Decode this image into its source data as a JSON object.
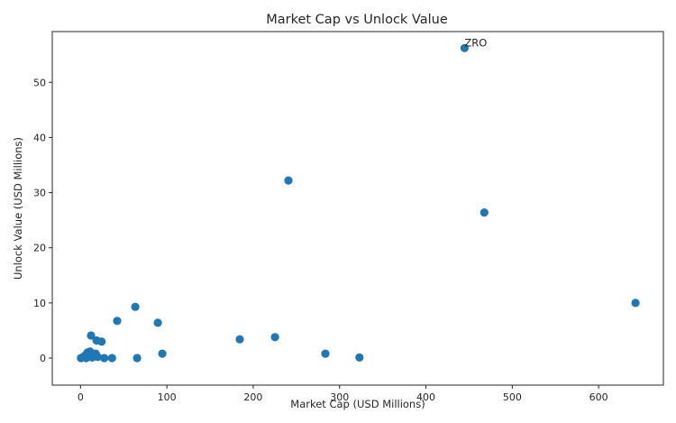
{
  "chart_data": {
    "type": "scatter",
    "title": "Market Cap vs Unlock Value",
    "xlabel": "Market Cap (USD Millions)",
    "ylabel": "Unlock Value (USD Millions)",
    "xlim": [
      -32.7,
      675
    ],
    "ylim": [
      -4.9,
      59.2
    ],
    "xticks": [
      0,
      100,
      200,
      300,
      400,
      500,
      600
    ],
    "yticks": [
      0,
      10,
      20,
      30,
      40,
      50
    ],
    "grid": false,
    "legend": null,
    "marker_color": "#1f77b4",
    "points": [
      {
        "x": 444.7,
        "y": 56.2,
        "label": "ZRO"
      },
      {
        "x": 240.8,
        "y": 32.2
      },
      {
        "x": 467.6,
        "y": 26.4
      },
      {
        "x": 642.7,
        "y": 10.0
      },
      {
        "x": 63.4,
        "y": 9.3
      },
      {
        "x": 42.5,
        "y": 6.75
      },
      {
        "x": 89.5,
        "y": 6.4
      },
      {
        "x": 12.2,
        "y": 4.1
      },
      {
        "x": 225.2,
        "y": 3.8
      },
      {
        "x": 184.4,
        "y": 3.4
      },
      {
        "x": 18.5,
        "y": 3.2
      },
      {
        "x": 24.4,
        "y": 3.0
      },
      {
        "x": 94.7,
        "y": 0.8
      },
      {
        "x": 283.6,
        "y": 0.8
      },
      {
        "x": 323.0,
        "y": 0.1
      },
      {
        "x": 65.5,
        "y": 0.0
      },
      {
        "x": 36.5,
        "y": 0.0
      },
      {
        "x": 27.5,
        "y": 0.0
      },
      {
        "x": 0.5,
        "y": 0.0
      },
      {
        "x": 3.0,
        "y": 0.2
      },
      {
        "x": 5.5,
        "y": 0.5
      },
      {
        "x": 8.0,
        "y": 1.0
      },
      {
        "x": 9.5,
        "y": 0.3
      },
      {
        "x": 11.0,
        "y": 1.2
      },
      {
        "x": 13.5,
        "y": 0.1
      },
      {
        "x": 15.0,
        "y": 0.6
      },
      {
        "x": 17.5,
        "y": 0.8
      },
      {
        "x": 20.0,
        "y": 0.2
      },
      {
        "x": 6.5,
        "y": 0.0
      }
    ],
    "annotations": [
      {
        "text": "ZRO",
        "x": 444.7,
        "y": 56.2
      }
    ]
  }
}
